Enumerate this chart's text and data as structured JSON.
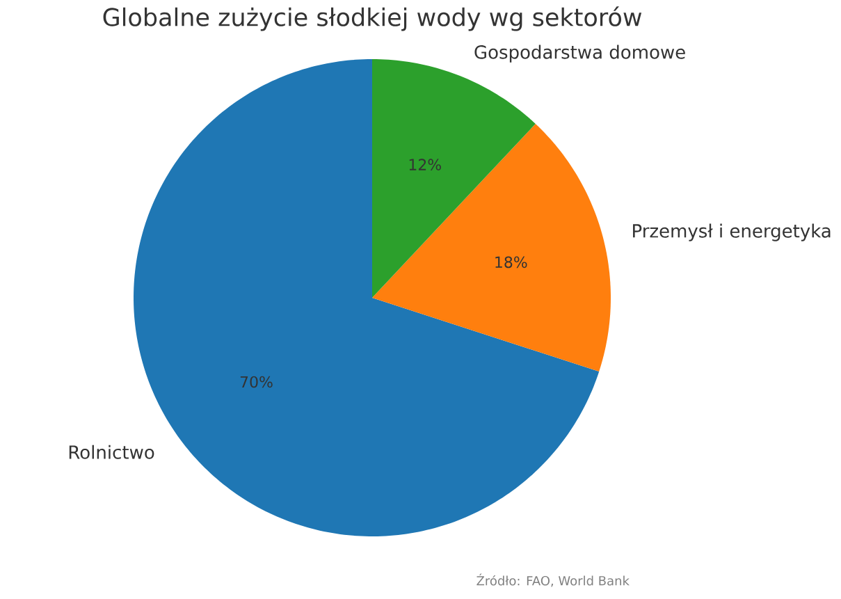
{
  "chart_data": {
    "type": "pie",
    "title": "Globalne zużycie słodkiej wody wg sektorów",
    "categories": [
      "Rolnictwo",
      "Przemysł i energetyka",
      "Gospodarstwa domowe"
    ],
    "values": [
      70,
      18,
      12
    ],
    "colors": [
      "#1f77b4",
      "#ff7f0e",
      "#2ca02c"
    ],
    "value_labels": [
      "70%",
      "18%",
      "12%"
    ],
    "annotations": [
      "Źródło: FAO, World Bank"
    ]
  }
}
